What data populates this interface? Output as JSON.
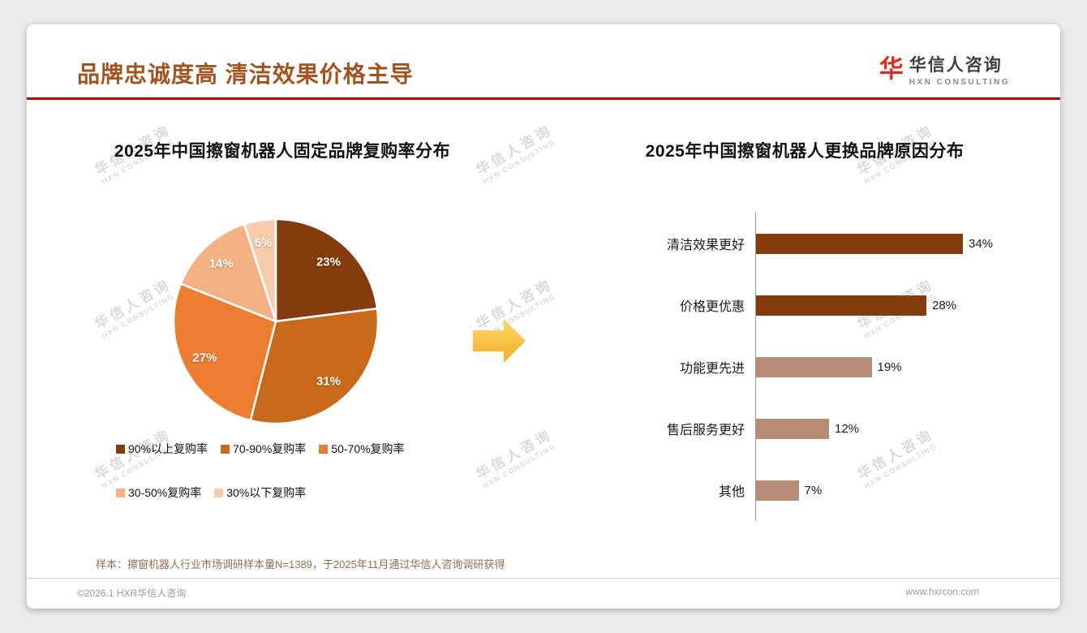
{
  "slide": {
    "title": "品牌忠诚度高 清洁效果价格主导",
    "logo": {
      "name": "华信人咨询",
      "subtitle": "HXN CONSULTING",
      "icon_glyph": "华",
      "icon_color": "#E02B20"
    },
    "watermark": {
      "line1": "华信人咨询",
      "line2": "HXN CONSULTING"
    },
    "sample_note": "样本：擦窗机器人行业市场调研样本量N=1389，于2025年11月通过华信人咨询调研获得",
    "copyright": "©2026.1 HXR华信人咨询",
    "website": "www.hxrcon.com",
    "accent_color": "#C00000",
    "title_color": "#A5531E"
  },
  "chart_data": [
    {
      "type": "pie",
      "title": "2025年中国擦窗机器人固定品牌复购率分布",
      "labels": [
        "90%以上复购率",
        "70-90%复购率",
        "50-70%复购率",
        "30-50%复购率",
        "30%以下复购率"
      ],
      "values": [
        23,
        31,
        27,
        14,
        5
      ],
      "data_labels": [
        "23%",
        "31%",
        "27%",
        "14%",
        "5%"
      ],
      "colors": [
        "#843C0C",
        "#C96A1B",
        "#ED7D31",
        "#F4B183",
        "#F8CBAD"
      ],
      "start_angle_deg": -90,
      "direction": "clockwise",
      "legend_position": "bottom"
    },
    {
      "type": "bar",
      "orientation": "horizontal",
      "title": "2025年中国擦窗机器人更换品牌原因分布",
      "categories": [
        "清洁效果更好",
        "价格更优惠",
        "功能更先进",
        "售后服务更好",
        "其他"
      ],
      "values": [
        34,
        28,
        19,
        12,
        7
      ],
      "value_labels": [
        "34%",
        "28%",
        "19%",
        "12%",
        "7%"
      ],
      "colors": [
        "#843C0C",
        "#843C0C",
        "#B78C76",
        "#B78C76",
        "#B78C76"
      ],
      "xlim": [
        0,
        40
      ],
      "grid": false
    }
  ]
}
